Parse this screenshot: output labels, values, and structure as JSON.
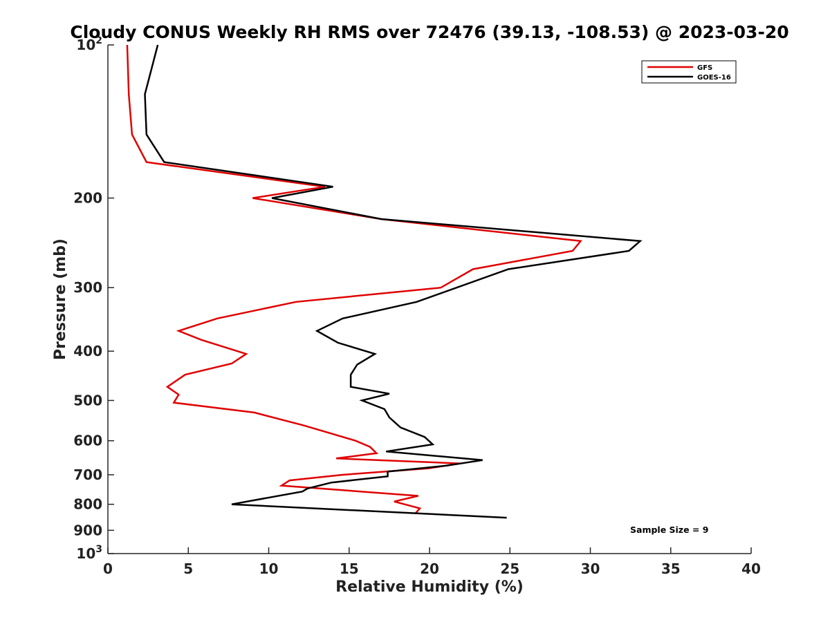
{
  "chart_data": {
    "type": "line",
    "title": "Cloudy CONUS Weekly RH RMS over 72476 (39.13, -108.53) @ 2023-03-20",
    "xlabel": "Relative Humidity (%)",
    "ylabel": "Pressure (mb)",
    "xlim": [
      0,
      40
    ],
    "ylim": [
      100,
      1000
    ],
    "y_scale": "log",
    "y_reversed": true,
    "grid": false,
    "legend_position": "top-right",
    "x_ticks": [
      {
        "value": 0,
        "label": "0"
      },
      {
        "value": 5,
        "label": "5"
      },
      {
        "value": 10,
        "label": "10"
      },
      {
        "value": 15,
        "label": "15"
      },
      {
        "value": 20,
        "label": "20"
      },
      {
        "value": 25,
        "label": "25"
      },
      {
        "value": 30,
        "label": "30"
      },
      {
        "value": 35,
        "label": "35"
      },
      {
        "value": 40,
        "label": "40"
      }
    ],
    "y_ticks": [
      {
        "value": 100,
        "base": "10",
        "exp": "2"
      },
      {
        "value": 200,
        "label": "200"
      },
      {
        "value": 300,
        "label": "300"
      },
      {
        "value": 400,
        "label": "400"
      },
      {
        "value": 500,
        "label": "500"
      },
      {
        "value": 600,
        "label": "600"
      },
      {
        "value": 700,
        "label": "700"
      },
      {
        "value": 800,
        "label": "800"
      },
      {
        "value": 900,
        "label": "900"
      },
      {
        "value": 1000,
        "base": "10",
        "exp": "3"
      }
    ],
    "series": [
      {
        "name": "GFS",
        "color": "#e00000",
        "points": [
          [
            1.2,
            100
          ],
          [
            1.3,
            125
          ],
          [
            1.5,
            150
          ],
          [
            2.4,
            170
          ],
          [
            13.5,
            190
          ],
          [
            9.0,
            200
          ],
          [
            17.0,
            220
          ],
          [
            29.4,
            243
          ],
          [
            28.9,
            254
          ],
          [
            22.7,
            276
          ],
          [
            20.7,
            300
          ],
          [
            11.7,
            320
          ],
          [
            6.8,
            345
          ],
          [
            4.4,
            365
          ],
          [
            5.8,
            380
          ],
          [
            8.6,
            405
          ],
          [
            7.7,
            423
          ],
          [
            4.8,
            445
          ],
          [
            3.7,
            470
          ],
          [
            4.4,
            487
          ],
          [
            4.1,
            505
          ],
          [
            9.1,
            528
          ],
          [
            12.2,
            560
          ],
          [
            15.4,
            600
          ],
          [
            16.3,
            617
          ],
          [
            16.7,
            635
          ],
          [
            14.2,
            650
          ],
          [
            21.9,
            665
          ],
          [
            19.9,
            680
          ],
          [
            14.6,
            700
          ],
          [
            11.3,
            718
          ],
          [
            10.8,
            735
          ],
          [
            19.3,
            770
          ],
          [
            17.8,
            790
          ],
          [
            19.4,
            815
          ],
          [
            19.1,
            835
          ]
        ]
      },
      {
        "name": "GOES-16",
        "color": "#000000",
        "points": [
          [
            3.1,
            100
          ],
          [
            2.3,
            125
          ],
          [
            2.4,
            150
          ],
          [
            3.5,
            170
          ],
          [
            14.0,
            190
          ],
          [
            10.2,
            200
          ],
          [
            17.0,
            220
          ],
          [
            33.1,
            243
          ],
          [
            32.4,
            254
          ],
          [
            24.9,
            276
          ],
          [
            19.2,
            320
          ],
          [
            14.6,
            345
          ],
          [
            13.0,
            365
          ],
          [
            14.3,
            385
          ],
          [
            16.6,
            405
          ],
          [
            15.5,
            425
          ],
          [
            15.1,
            445
          ],
          [
            15.1,
            470
          ],
          [
            17.5,
            485
          ],
          [
            15.8,
            500
          ],
          [
            17.2,
            520
          ],
          [
            17.5,
            540
          ],
          [
            18.2,
            565
          ],
          [
            19.7,
            590
          ],
          [
            20.2,
            610
          ],
          [
            17.3,
            630
          ],
          [
            23.3,
            655
          ],
          [
            21.0,
            672
          ],
          [
            17.4,
            690
          ],
          [
            17.4,
            705
          ],
          [
            13.9,
            725
          ],
          [
            12.4,
            745
          ],
          [
            12.1,
            755
          ],
          [
            7.7,
            800
          ],
          [
            24.8,
            850
          ]
        ]
      }
    ],
    "annotation": "Sample Size = 9"
  }
}
